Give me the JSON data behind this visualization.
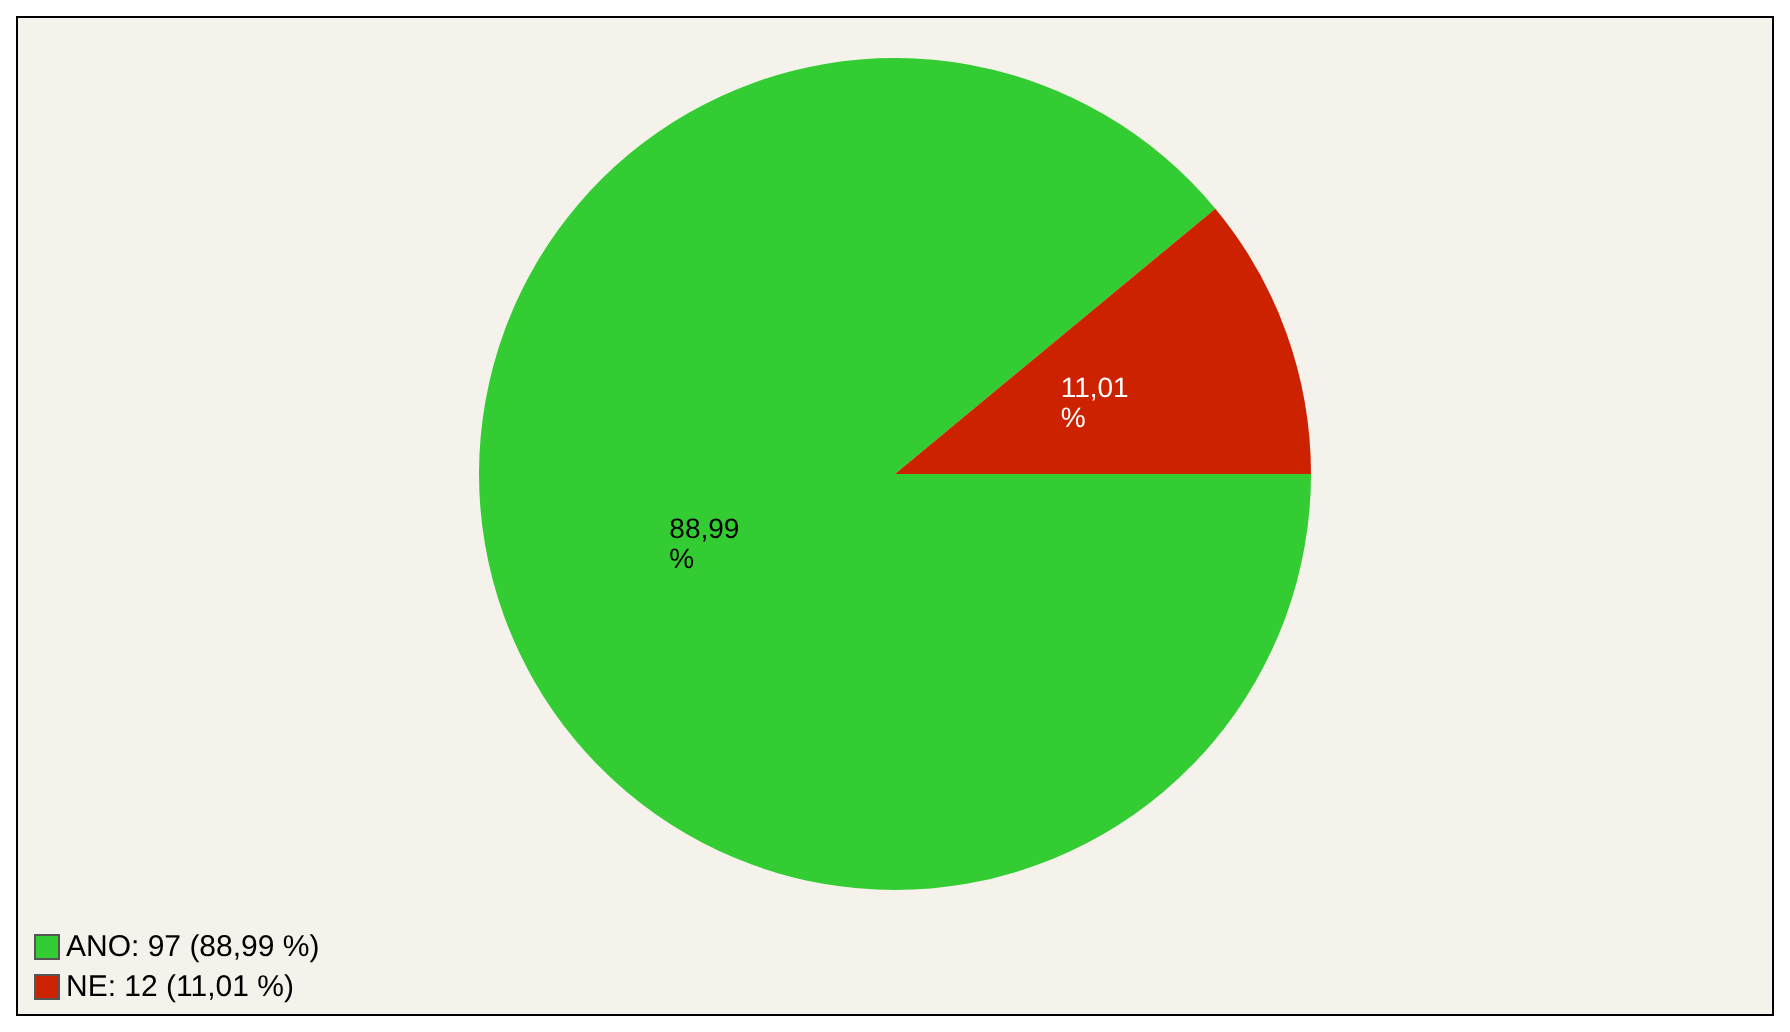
{
  "chart_data": {
    "type": "pie",
    "categories": [
      "ANO: 97 (88,99 %)",
      "NE: 12 (11,01 %)"
    ],
    "values": [
      88.99,
      11.01
    ],
    "colors": [
      "#33cc33",
      "#cc2200"
    ],
    "value_labels": [
      "88,99 %",
      "11,01 %"
    ],
    "legend": "bottom left"
  }
}
